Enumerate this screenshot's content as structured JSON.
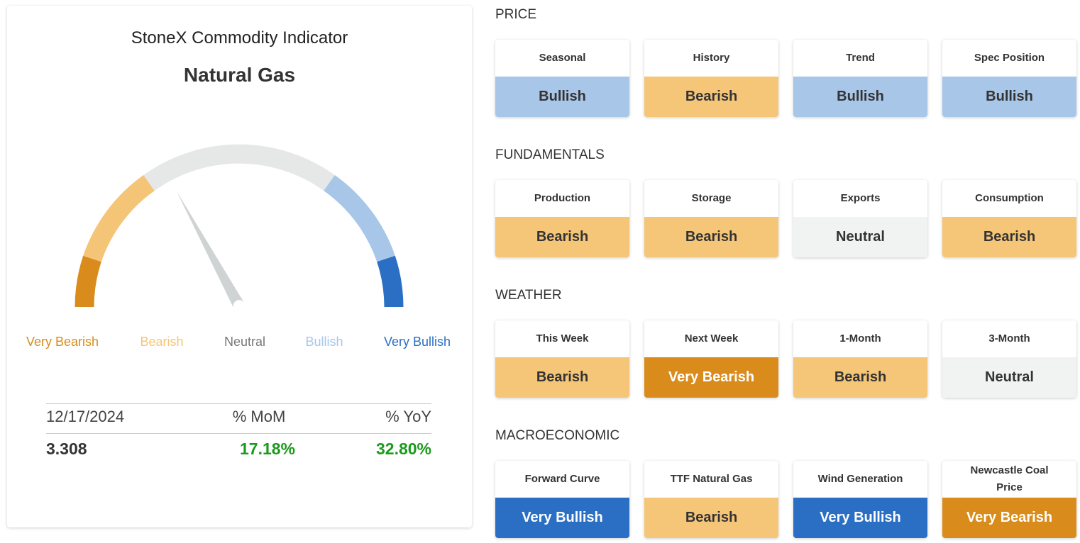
{
  "header": {
    "title": "StoneX Commodity Indicator",
    "subtitle": "Natural Gas"
  },
  "gauge": {
    "labels": [
      "Very Bearish",
      "Bearish",
      "Neutral",
      "Bullish",
      "Very Bullish"
    ]
  },
  "stats": {
    "headers": [
      "12/17/2024",
      "% MoM",
      "% YoY"
    ],
    "values": [
      "3.308",
      "17.18%",
      "32.80%"
    ]
  },
  "sections": [
    {
      "title": "PRICE",
      "indicators": [
        {
          "label": "Seasonal",
          "signal": "Bullish"
        },
        {
          "label": "History",
          "signal": "Bearish"
        },
        {
          "label": "Trend",
          "signal": "Bullish"
        },
        {
          "label": "Spec Position",
          "signal": "Bullish"
        }
      ]
    },
    {
      "title": "FUNDAMENTALS",
      "indicators": [
        {
          "label": "Production",
          "signal": "Bearish"
        },
        {
          "label": "Storage",
          "signal": "Bearish"
        },
        {
          "label": "Exports",
          "signal": "Neutral"
        },
        {
          "label": "Consumption",
          "signal": "Bearish"
        }
      ]
    },
    {
      "title": "WEATHER",
      "indicators": [
        {
          "label": "This Week",
          "signal": "Bearish"
        },
        {
          "label": "Next Week",
          "signal": "Very Bearish"
        },
        {
          "label": "1-Month",
          "signal": "Bearish"
        },
        {
          "label": "3-Month",
          "signal": "Neutral"
        }
      ]
    },
    {
      "title": "MACROECONOMIC",
      "indicators": [
        {
          "label": "Forward Curve",
          "signal": "Very Bullish"
        },
        {
          "label": "TTF Natural Gas",
          "signal": "Bearish"
        },
        {
          "label": "Wind Generation",
          "signal": "Very Bullish"
        },
        {
          "label": "Newcastle Coal Price",
          "signal": "Very Bearish"
        }
      ]
    }
  ]
}
